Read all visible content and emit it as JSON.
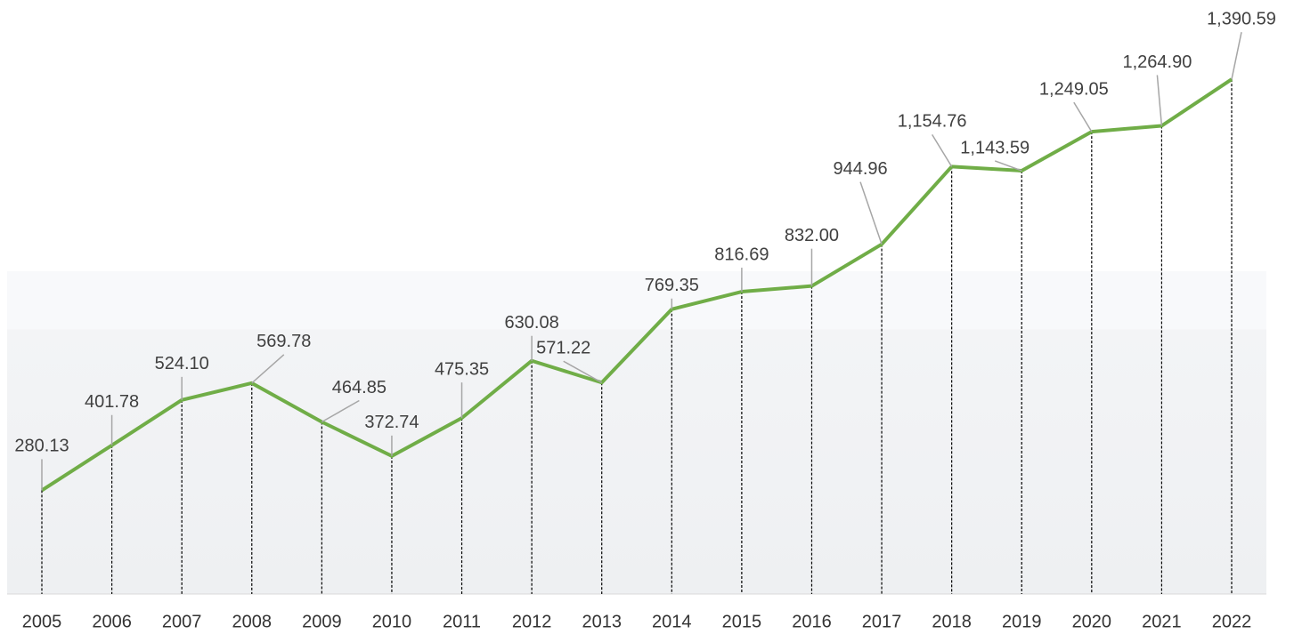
{
  "chart_data": {
    "type": "line",
    "categories": [
      "2005",
      "2006",
      "2007",
      "2008",
      "2009",
      "2010",
      "2011",
      "2012",
      "2013",
      "2014",
      "2015",
      "2016",
      "2017",
      "2018",
      "2019",
      "2020",
      "2021",
      "2022"
    ],
    "series": [
      {
        "color": "#70ad47",
        "values": [
          280.13,
          401.78,
          524.1,
          569.78,
          464.85,
          372.74,
          475.35,
          630.08,
          571.22,
          769.35,
          816.69,
          832.0,
          944.96,
          1154.76,
          1143.59,
          1249.05,
          1264.9,
          1390.59
        ],
        "value_labels": [
          "280.13",
          "401.78",
          "524.10",
          "569.78",
          "464.85",
          "372.74",
          "475.35",
          "630.08",
          "571.22",
          "769.35",
          "816.69",
          "832.00",
          "944.96",
          "1,154.76",
          "1,143.59",
          "1,249.05",
          "1,264.90",
          "1,390.59"
        ]
      }
    ],
    "ylim": [
      0,
      1600
    ]
  }
}
